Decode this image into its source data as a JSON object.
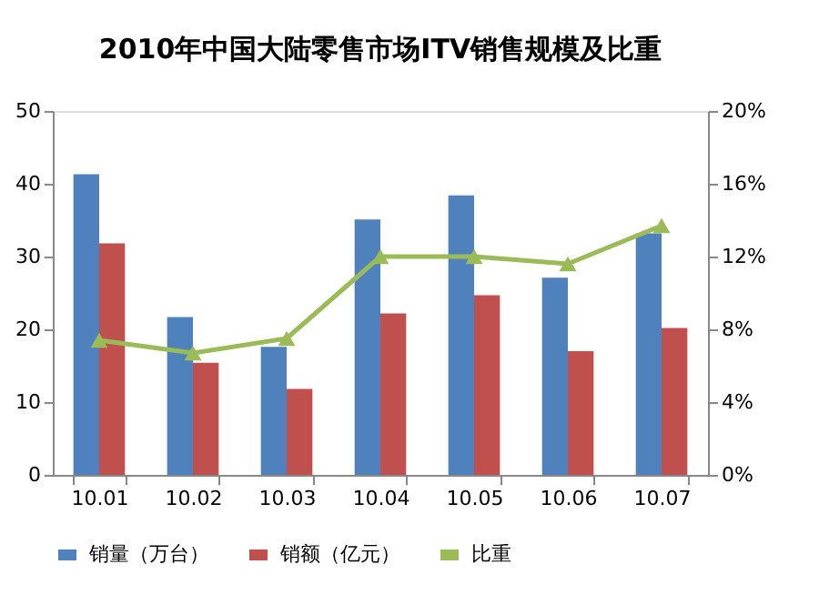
{
  "chart_data": {
    "type": "bar",
    "title": "2010年中国大陆零售市场ITV销售规模及比重",
    "categories": [
      "10.01",
      "10.02",
      "10.03",
      "10.04",
      "10.05",
      "10.06",
      "10.07"
    ],
    "series": [
      {
        "name": "销量（万台）",
        "color": "#4f81bd",
        "values": [
          41.3,
          21.7,
          17.6,
          35.1,
          38.4,
          27.1,
          33.2
        ]
      },
      {
        "name": "销额（亿元）",
        "color": "#c0504d",
        "values": [
          31.8,
          15.4,
          11.8,
          22.2,
          24.7,
          17.0,
          20.2
        ]
      },
      {
        "name": "比重",
        "color": "#9bbb59",
        "type": "line",
        "axis": "y2",
        "marker": "triangle",
        "values": [
          7.4,
          6.7,
          7.5,
          12.0,
          12.0,
          11.6,
          13.7
        ]
      }
    ],
    "ylim": [
      0,
      50
    ],
    "yticks": [
      0,
      10,
      20,
      30,
      40,
      50
    ],
    "y2lim": [
      0,
      20
    ],
    "y2ticks": [
      {
        "value": 0,
        "label": "0%"
      },
      {
        "value": 4,
        "label": "4%"
      },
      {
        "value": 8,
        "label": "8%"
      },
      {
        "value": 12,
        "label": "12%"
      },
      {
        "value": 16,
        "label": "16%"
      },
      {
        "value": 20,
        "label": "20%"
      }
    ],
    "grid": false,
    "legend": "bottom"
  }
}
